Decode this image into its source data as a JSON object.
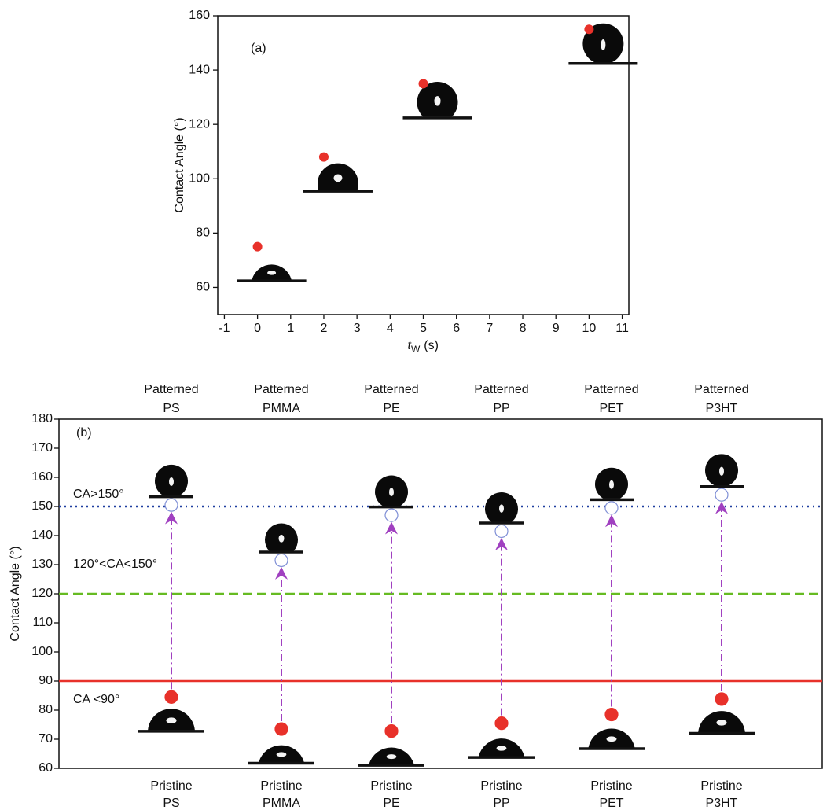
{
  "chart_data": [
    {
      "type": "scatter",
      "title": "(a)",
      "xlabel": [
        "t",
        "W",
        "(s)"
      ],
      "ylabel": "Contact Angle (°)",
      "x": [
        0,
        2,
        5,
        10
      ],
      "values": [
        75,
        108,
        135,
        155
      ],
      "color": "#e8312a",
      "xlim": [
        -1.2,
        11.2
      ],
      "ylim": [
        50,
        160
      ],
      "xticks": [
        -1,
        0,
        1,
        2,
        3,
        4,
        5,
        6,
        7,
        8,
        9,
        10,
        11
      ],
      "yticks": [
        60,
        80,
        100,
        120,
        140,
        160
      ]
    },
    {
      "type": "dot",
      "title": "(b)",
      "ylabel": "Contact Angle (°)",
      "categories": [
        "PS",
        "PMMA",
        "PE",
        "PP",
        "PET",
        "P3HT"
      ],
      "series": [
        {
          "name": "Patterned",
          "color": "#7f8fd6",
          "marker": "hollow",
          "values": [
            150.5,
            131.5,
            147,
            141.5,
            149.5,
            154
          ]
        },
        {
          "name": "Pristine",
          "color": "#e8312a",
          "marker": "filled",
          "values": [
            84.5,
            73.5,
            72.8,
            75.5,
            78.5,
            83.8
          ]
        }
      ],
      "arrow_color": "#a040c0",
      "ylim": [
        60,
        180
      ],
      "yticks": [
        60,
        70,
        80,
        90,
        100,
        110,
        120,
        130,
        140,
        150,
        160,
        170,
        180
      ],
      "reference_lines": [
        {
          "value": 150,
          "color": "#1f3fa0",
          "style": "dotted",
          "label": "CA>150°"
        },
        {
          "value": 120,
          "color": "#66bb22",
          "style": "dashed",
          "label": "120°<CA<150°"
        },
        {
          "value": 90,
          "color": "#e8312a",
          "style": "solid",
          "label": "CA <90°"
        }
      ]
    }
  ]
}
